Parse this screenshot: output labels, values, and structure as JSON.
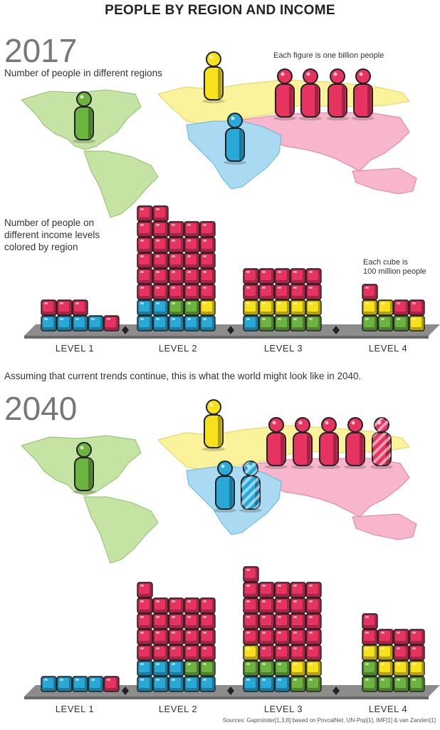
{
  "title": "PEOPLE BY REGION AND INCOME",
  "colors": {
    "americas": "#6db33f",
    "europe": "#f7e01c",
    "africa": "#28a9d8",
    "asia": "#e6335f",
    "map_americas": "#c5e3a3",
    "map_europe": "#faf39b",
    "map_africa": "#a9daf1",
    "map_asia": "#f7b6cb",
    "platform": "#8c8c8c"
  },
  "intro_2017": {
    "year": "2017",
    "regions_caption": "Number of people in different regions",
    "figure_note": "Each figure is one billion people",
    "income_caption": "Number of people on different income levels colored by region",
    "cube_note_line1": "Each cube is",
    "cube_note_line2": "100 million people"
  },
  "assumption": "Assuming that current trends continue, this is what the world might look like in 2040.",
  "intro_2040": {
    "year": "2040"
  },
  "sources": "Sources: Gapminder[1,3,8] based on PovcalNet, UN-Pop[1], IMF[1] & van Zanden[1]",
  "chart_data": [
    {
      "type": "pictograph",
      "year": "2017",
      "unit": "one billion people per figure",
      "regions": [
        {
          "region": "americas",
          "figures": 1
        },
        {
          "region": "europe",
          "figures": 1
        },
        {
          "region": "africa",
          "figures": 1
        },
        {
          "region": "asia",
          "figures": 4
        }
      ]
    },
    {
      "type": "bar",
      "year": "2017",
      "unit": "100 million people per cube",
      "categories": [
        "LEVEL 1",
        "LEVEL 2",
        "LEVEL 3",
        "LEVEL 4"
      ],
      "levels": [
        {
          "label": "LEVEL 1",
          "africa": 4,
          "americas": 0,
          "europe": 0,
          "asia": 4
        },
        {
          "label": "LEVEL 2",
          "africa": 7,
          "americas": 2,
          "europe": 1,
          "asia": 27
        },
        {
          "label": "LEVEL 3",
          "africa": 1,
          "americas": 4,
          "europe": 5,
          "asia": 10
        },
        {
          "label": "LEVEL 4",
          "africa": 0,
          "americas": 3,
          "europe": 3,
          "asia": 3
        }
      ]
    },
    {
      "type": "pictograph",
      "year": "2040",
      "unit": "one billion people per figure",
      "regions": [
        {
          "region": "americas",
          "figures": 1
        },
        {
          "region": "europe",
          "figures": 1
        },
        {
          "region": "africa",
          "figures": 2
        },
        {
          "region": "asia",
          "figures": 5
        }
      ]
    },
    {
      "type": "bar",
      "year": "2040",
      "unit": "100 million people per cube",
      "categories": [
        "LEVEL 1",
        "LEVEL 2",
        "LEVEL 3",
        "LEVEL 4"
      ],
      "levels": [
        {
          "label": "LEVEL 1",
          "africa": 4,
          "americas": 0,
          "europe": 0,
          "asia": 1
        },
        {
          "label": "LEVEL 2",
          "africa": 8,
          "americas": 2,
          "europe": 0,
          "asia": 21
        },
        {
          "label": "LEVEL 3",
          "africa": 3,
          "americas": 5,
          "europe": 3,
          "asia": 25
        },
        {
          "label": "LEVEL 4",
          "africa": 0,
          "americas": 5,
          "europe": 5,
          "asia": 7
        }
      ]
    }
  ]
}
